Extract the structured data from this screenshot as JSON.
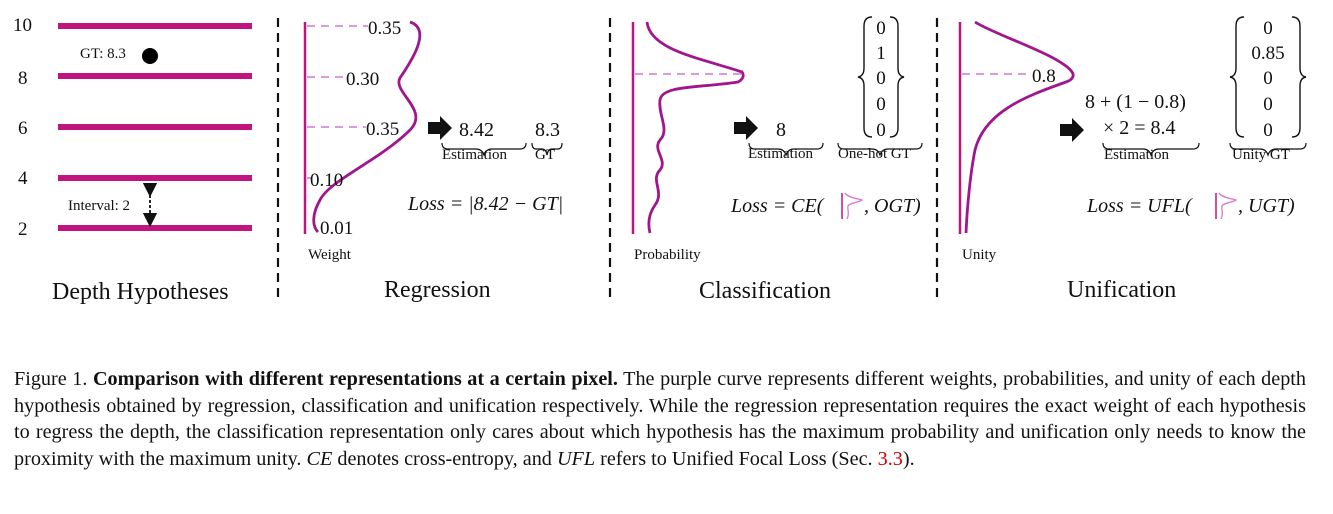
{
  "panels": {
    "depth": {
      "title": "Depth Hypotheses",
      "ticks": [
        "10",
        "8",
        "6",
        "4",
        "2"
      ],
      "gt_label": "GT: 8.3",
      "interval_label": "Interval: 2"
    },
    "regression": {
      "title": "Regression",
      "axis_label": "Weight",
      "values": [
        "0.35",
        "0.30",
        "0.35",
        "0.10",
        "0.01"
      ],
      "estimation_value": "8.42",
      "gt_value": "8.3",
      "estimation_label": "Estimation",
      "gt_label": "GT",
      "loss": "Loss = |8.42 − GT|"
    },
    "classification": {
      "title": "Classification",
      "axis_label": "Probability",
      "estimation_value": "8",
      "estimation_label": "Estimation",
      "gt_label": "One-hot GT",
      "vector": [
        "0",
        "1",
        "0",
        "0",
        "0"
      ],
      "loss_prefix": "Loss = CE(",
      "loss_suffix": ", OGT)"
    },
    "unification": {
      "title": "Unification",
      "axis_label": "Unity",
      "peak_value": "0.8",
      "estimation_line1": "8 + (1 − 0.8)",
      "estimation_line2": "× 2 = 8.4",
      "estimation_label": "Estimation",
      "gt_label": "Unity GT",
      "vector": [
        "0",
        "0.85",
        "0",
        "0",
        "0"
      ],
      "loss_prefix": "Loss = UFL(",
      "loss_suffix": ", UGT)"
    }
  },
  "caption": {
    "figure_label": "Figure 1.",
    "bold_title": "Comparison with different representations at a certain pixel.",
    "text_1": " The purple curve represents different weights, probabilities, and unity of each depth hypothesis obtained by regression, classification and unification respectively. While the regression representation requires the exact weight of each hypothesis to regress the depth, the classification representation only cares about which hypothesis has the maximum probability and unification only needs to know the proximity with the maximum unity. ",
    "ce_symbol": "CE",
    "text_2": " denotes cross-entropy, and ",
    "ufl_symbol": "UFL",
    "text_3": " refers to Unified Focal Loss (Sec. ",
    "section_ref": "3.3",
    "text_4": ")."
  },
  "colors": {
    "magenta": "#c0157e",
    "purple_curve": "#a0168f",
    "dashed": "#dd99dd"
  }
}
